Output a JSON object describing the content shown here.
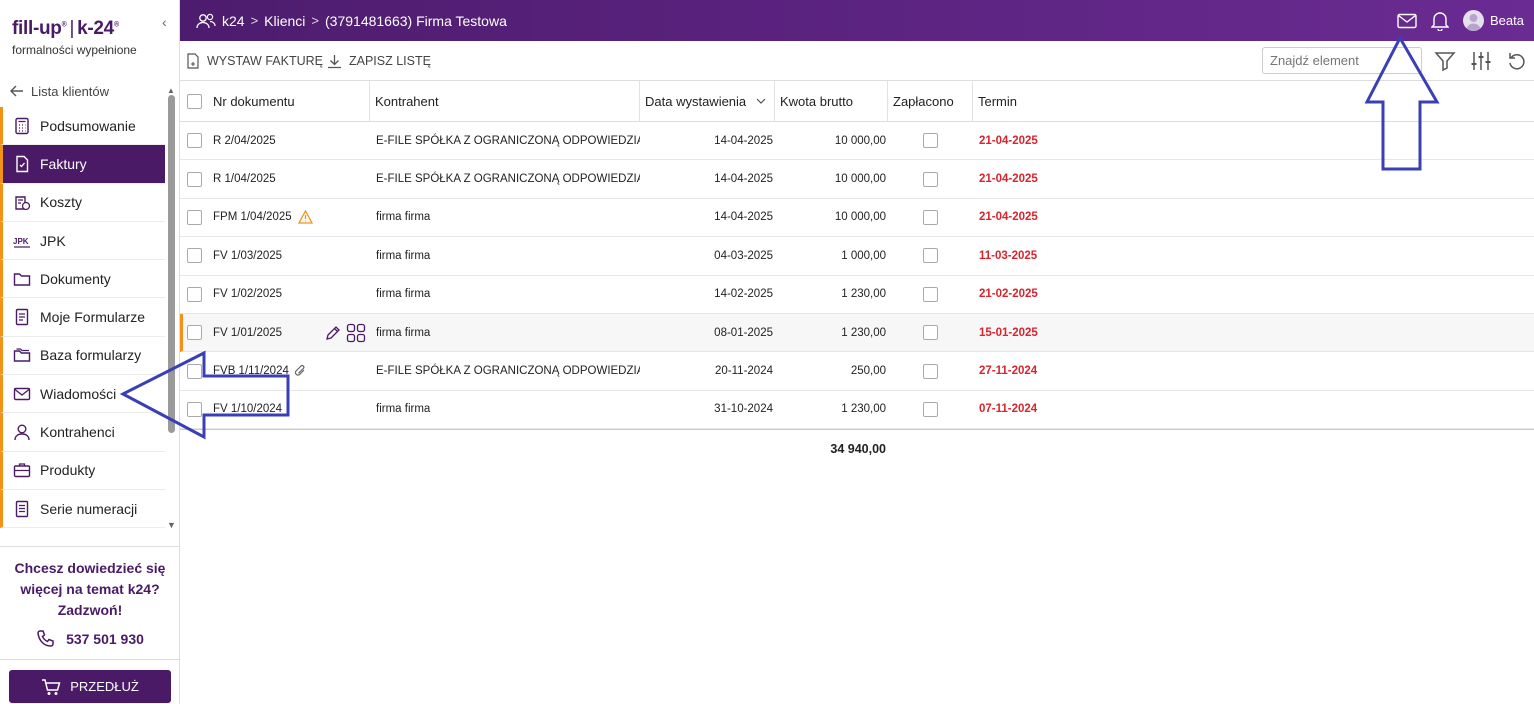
{
  "logo": {
    "brand_left": "fill-up",
    "brand_right": "k-24",
    "tagline": "formalności wypełnione"
  },
  "sidebar": {
    "back_label": "Lista klientów",
    "items": [
      {
        "label": "Podsumowanie",
        "icon": "calculator-icon"
      },
      {
        "label": "Faktury",
        "icon": "invoice-icon",
        "active": true
      },
      {
        "label": "Koszty",
        "icon": "costs-icon"
      },
      {
        "label": "JPK",
        "icon": "jpk-icon"
      },
      {
        "label": "Dokumenty",
        "icon": "folder-icon"
      },
      {
        "label": "Moje Formularze",
        "icon": "form-icon"
      },
      {
        "label": "Baza formularzy",
        "icon": "folders-icon"
      },
      {
        "label": "Wiadomości",
        "icon": "mail-icon"
      },
      {
        "label": "Kontrahenci",
        "icon": "person-icon"
      },
      {
        "label": "Produkty",
        "icon": "briefcase-icon"
      },
      {
        "label": "Serie numeracji",
        "icon": "list-icon"
      }
    ],
    "promo_line1": "Chcesz dowiedzieć się",
    "promo_line2": "więcej na temat k24?",
    "promo_line3": "Zadzwoń!",
    "phone": "537 501 930",
    "extend_label": "PRZEDŁUŻ"
  },
  "topbar": {
    "breadcrumb": [
      "k24",
      "Klienci",
      "(3791481663) Firma Testowa"
    ],
    "user_name": "Beata"
  },
  "toolbar": {
    "issue_invoice": "WYSTAW FAKTURĘ",
    "save_list": "ZAPISZ LISTĘ",
    "search_placeholder": "Znajdź element"
  },
  "grid": {
    "headers": {
      "doc_number": "Nr dokumentu",
      "contractor": "Kontrahent",
      "issue_date": "Data wystawienia",
      "gross": "Kwota brutto",
      "paid": "Zapłacono",
      "due": "Termin"
    },
    "rows": [
      {
        "doc": "R 2/04/2025",
        "contractor": "E-FILE SPÓŁKA Z OGRANICZONĄ ODPOWIEDZIALN...",
        "date": "14-04-2025",
        "amount": "10 000,00",
        "due": "21-04-2025"
      },
      {
        "doc": "R 1/04/2025",
        "contractor": "E-FILE SPÓŁKA Z OGRANICZONĄ ODPOWIEDZIALN...",
        "date": "14-04-2025",
        "amount": "10 000,00",
        "due": "21-04-2025"
      },
      {
        "doc": "FPM 1/04/2025",
        "contractor": "firma firma",
        "date": "14-04-2025",
        "amount": "10 000,00",
        "due": "21-04-2025",
        "warning": true
      },
      {
        "doc": "FV 1/03/2025",
        "contractor": "firma firma",
        "date": "04-03-2025",
        "amount": "1 000,00",
        "due": "11-03-2025"
      },
      {
        "doc": "FV 1/02/2025",
        "contractor": "firma firma",
        "date": "14-02-2025",
        "amount": "1 230,00",
        "due": "21-02-2025"
      },
      {
        "doc": "FV 1/01/2025",
        "contractor": "firma firma",
        "date": "08-01-2025",
        "amount": "1 230,00",
        "due": "15-01-2025",
        "hover": true
      },
      {
        "doc": "FVB 1/11/2024",
        "contractor": "E-FILE SPÓŁKA Z OGRANICZONĄ ODPOWIEDZIALN...",
        "date": "20-11-2024",
        "amount": "250,00",
        "due": "27-11-2024",
        "attachment": true
      },
      {
        "doc": "FV 1/10/2024",
        "contractor": "firma firma",
        "date": "31-10-2024",
        "amount": "1 230,00",
        "due": "07-11-2024"
      }
    ],
    "total": "34 940,00"
  },
  "colors": {
    "primary": "#4a1a66",
    "accent": "#f29217",
    "due_red": "#d9232d",
    "arrow_blue": "#3b3fb5"
  }
}
